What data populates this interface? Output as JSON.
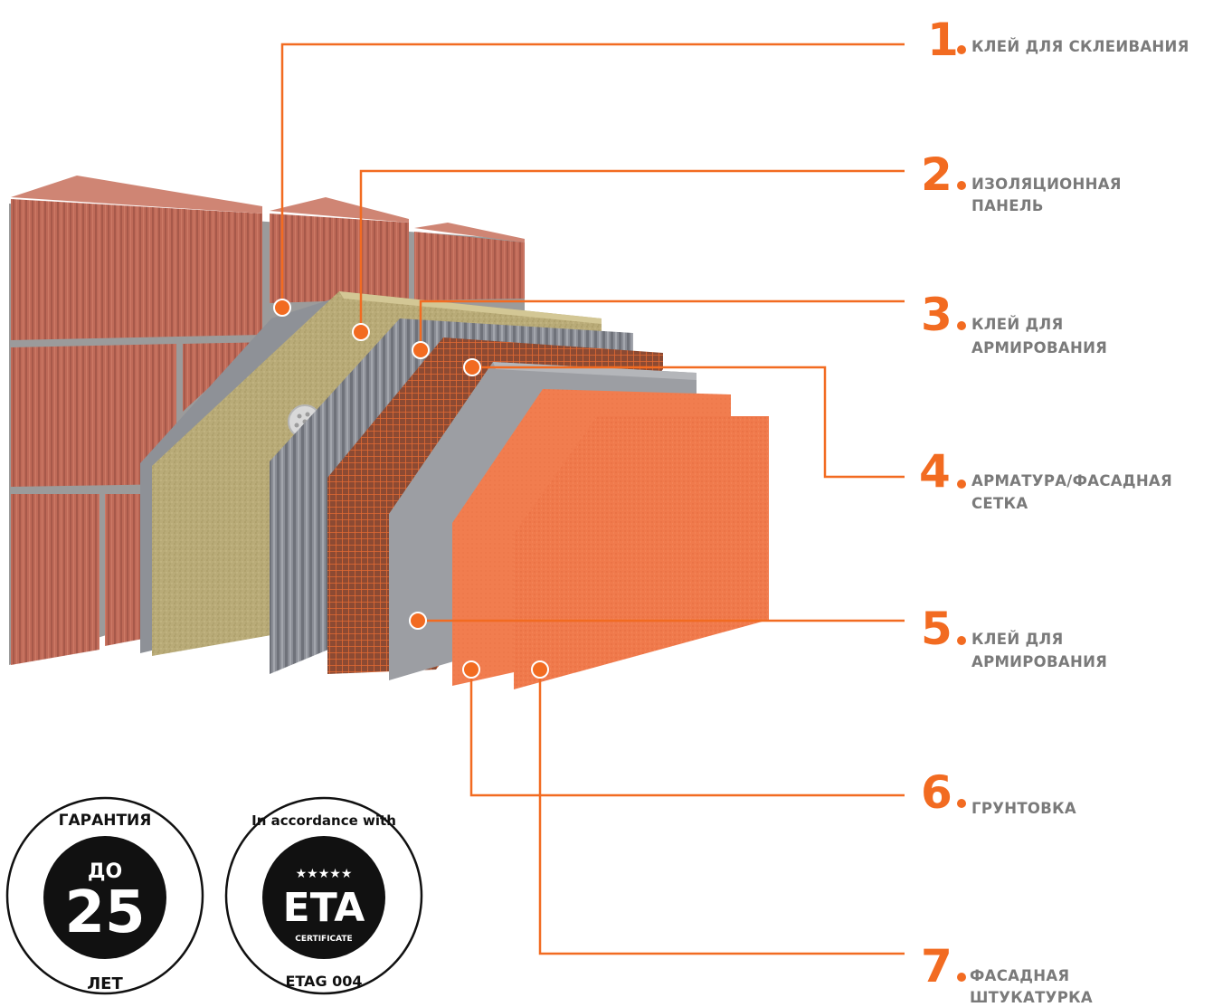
{
  "accent_color": "#F26B21",
  "label_color": "#7a7a7a",
  "layers": [
    {
      "number": "1",
      "lines": [
        "КЛЕЙ ДЛЯ СКЛЕИВАНИЯ"
      ]
    },
    {
      "number": "2",
      "lines": [
        "ИЗОЛЯЦИОННАЯ",
        "ПАНЕЛЬ"
      ]
    },
    {
      "number": "3",
      "lines": [
        "КЛЕЙ ДЛЯ",
        "АРМИРОВАНИЯ"
      ]
    },
    {
      "number": "4",
      "lines": [
        "АРМАТУРА/ФАСАДНАЯ",
        "СЕТКА"
      ]
    },
    {
      "number": "5",
      "lines": [
        "КЛЕЙ ДЛЯ",
        "АРМИРОВАНИЯ"
      ]
    },
    {
      "number": "6",
      "lines": [
        "ГРУНТОВКА"
      ]
    },
    {
      "number": "7",
      "lines": [
        "ФАСАДНАЯ",
        "ШТУКАТУРКА"
      ]
    }
  ],
  "badge_warranty": {
    "top": "ГАРАНТИЯ",
    "small": "ДО",
    "big": "25",
    "bottom": "ЛЕТ"
  },
  "badge_eta": {
    "top": "In accordance with",
    "stars": "★★★★★",
    "big": "ETA",
    "cert": "CERTIFICATE",
    "bottom": "ETAG 004"
  }
}
